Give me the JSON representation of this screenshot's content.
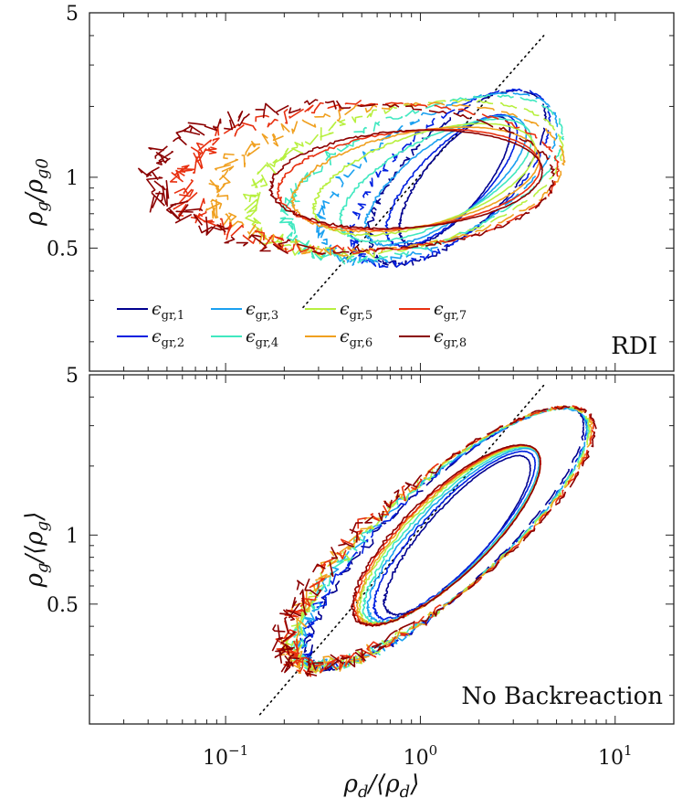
{
  "chart_data": [
    {
      "type": "line",
      "panel": "top",
      "panel_label": "RDI",
      "ylabel": "ρ_g/ρ_g0",
      "ylabel_parts": [
        "ρ",
        "g",
        "/ρ",
        "g0"
      ],
      "xscale": "log",
      "yscale": "log",
      "xlim": [
        0.02,
        20
      ],
      "ylim": [
        0.15,
        5
      ],
      "yticks": [
        {
          "value": 0.5,
          "label": "0.5"
        },
        {
          "value": 1,
          "label": "1"
        },
        {
          "value": 5,
          "label": "5"
        }
      ],
      "legend_position": "lower-left",
      "reference_line": {
        "style": "dotted",
        "color": "#000000",
        "x": [
          0.25,
          4.3
        ],
        "y": [
          0.28,
          4.0
        ]
      },
      "series": [
        {
          "name": "ε_gr,1",
          "color": "#00008f",
          "inner": {
            "cx": 1.5,
            "cy": 0.97,
            "rx": 1.1,
            "ry": 0.7,
            "tilt": 0.72
          },
          "outer": {
            "cx": 1.55,
            "cy": 1.0,
            "rx": 1.75,
            "ry": 1.05,
            "tilt": 0.55
          }
        },
        {
          "name": "ε_gr,2",
          "color": "#0020e0",
          "inner": {
            "cx": 1.45,
            "cy": 0.97,
            "rx": 1.3,
            "ry": 0.72,
            "tilt": 0.62
          },
          "outer": {
            "cx": 1.45,
            "cy": 1.0,
            "rx": 1.95,
            "ry": 1.1,
            "tilt": 0.48
          }
        },
        {
          "name": "ε_gr,3",
          "color": "#1aa0f0",
          "inner": {
            "cx": 1.35,
            "cy": 0.97,
            "rx": 1.6,
            "ry": 0.74,
            "tilt": 0.48
          },
          "outer": {
            "cx": 1.25,
            "cy": 1.0,
            "rx": 2.35,
            "ry": 1.12,
            "tilt": 0.35
          }
        },
        {
          "name": "ε_gr,4",
          "color": "#40e8c0",
          "inner": {
            "cx": 1.2,
            "cy": 0.97,
            "rx": 1.9,
            "ry": 0.76,
            "tilt": 0.35
          },
          "outer": {
            "cx": 1.05,
            "cy": 1.0,
            "rx": 2.75,
            "ry": 1.15,
            "tilt": 0.25
          }
        },
        {
          "name": "ε_gr,5",
          "color": "#b8f040",
          "inner": {
            "cx": 1.05,
            "cy": 0.98,
            "rx": 2.2,
            "ry": 0.78,
            "tilt": 0.22
          },
          "outer": {
            "cx": 0.85,
            "cy": 1.0,
            "rx": 3.1,
            "ry": 1.17,
            "tilt": 0.15
          }
        },
        {
          "name": "ε_gr,6",
          "color": "#f0a020",
          "inner": {
            "cx": 0.95,
            "cy": 0.98,
            "rx": 2.45,
            "ry": 0.79,
            "tilt": 0.14
          },
          "outer": {
            "cx": 0.7,
            "cy": 1.0,
            "rx": 3.45,
            "ry": 1.18,
            "tilt": 0.08
          }
        },
        {
          "name": "ε_gr,7",
          "color": "#e83010",
          "inner": {
            "cx": 0.88,
            "cy": 0.98,
            "rx": 2.6,
            "ry": 0.8,
            "tilt": 0.08
          },
          "outer": {
            "cx": 0.55,
            "cy": 1.0,
            "rx": 3.75,
            "ry": 1.2,
            "tilt": 0.03
          }
        },
        {
          "name": "ε_gr,8",
          "color": "#8b0000",
          "inner": {
            "cx": 0.85,
            "cy": 0.98,
            "rx": 2.7,
            "ry": 0.8,
            "tilt": 0.05
          },
          "outer": {
            "cx": 0.45,
            "cy": 1.0,
            "rx": 4.0,
            "ry": 1.2,
            "tilt": 0.0
          }
        }
      ]
    },
    {
      "type": "line",
      "panel": "bottom",
      "panel_label": "No Backreaction",
      "xlabel": "ρ_d/⟨ρ_d⟩",
      "xlabel_parts": [
        "ρ",
        "d",
        "/⟨ρ",
        "d",
        "⟩"
      ],
      "ylabel": "ρ_g/⟨ρ_g⟩",
      "ylabel_parts": [
        "ρ",
        "g",
        "/⟨ρ",
        "g",
        "⟩"
      ],
      "xscale": "log",
      "yscale": "log",
      "xlim": [
        0.02,
        20
      ],
      "ylim": [
        0.15,
        5
      ],
      "xticks": [
        {
          "value": 0.1,
          "base": "10",
          "exp": "−1"
        },
        {
          "value": 1,
          "base": "10",
          "exp": "0"
        },
        {
          "value": 10,
          "base": "10",
          "exp": "1"
        }
      ],
      "yticks": [
        {
          "value": 0.5,
          "label": "0.5"
        },
        {
          "value": 1,
          "label": "1"
        },
        {
          "value": 5,
          "label": "5"
        }
      ],
      "reference_line": {
        "style": "dotted",
        "color": "#000000",
        "x": [
          0.15,
          4.3
        ],
        "y": [
          0.165,
          4.5
        ]
      },
      "series": [
        {
          "name": "ε_gr,1",
          "color": "#00008f",
          "inner": {
            "cx": 1.55,
            "cy": 1.0,
            "rx": 1.45,
            "ry": 0.72,
            "tilt": 0.78
          },
          "outer": {
            "cx": 1.35,
            "cy": 0.98,
            "rx": 2.75,
            "ry": 1.15,
            "tilt": 0.68
          }
        },
        {
          "name": "ε_gr,2",
          "color": "#0020e0",
          "inner": {
            "cx": 1.5,
            "cy": 1.0,
            "rx": 1.6,
            "ry": 0.75,
            "tilt": 0.75
          },
          "outer": {
            "cx": 1.35,
            "cy": 0.98,
            "rx": 2.8,
            "ry": 1.17,
            "tilt": 0.66
          }
        },
        {
          "name": "ε_gr,3",
          "color": "#1aa0f0",
          "inner": {
            "cx": 1.48,
            "cy": 1.0,
            "rx": 1.7,
            "ry": 0.8,
            "tilt": 0.72
          },
          "outer": {
            "cx": 1.32,
            "cy": 0.98,
            "rx": 2.85,
            "ry": 1.18,
            "tilt": 0.64
          }
        },
        {
          "name": "ε_gr,4",
          "color": "#40e8c0",
          "inner": {
            "cx": 1.45,
            "cy": 1.0,
            "rx": 1.75,
            "ry": 0.84,
            "tilt": 0.7
          },
          "outer": {
            "cx": 1.3,
            "cy": 0.98,
            "rx": 2.9,
            "ry": 1.19,
            "tilt": 0.63
          }
        },
        {
          "name": "ε_gr,5",
          "color": "#b8f040",
          "inner": {
            "cx": 1.42,
            "cy": 1.0,
            "rx": 1.8,
            "ry": 0.87,
            "tilt": 0.68
          },
          "outer": {
            "cx": 1.28,
            "cy": 0.98,
            "rx": 2.95,
            "ry": 1.2,
            "tilt": 0.62
          }
        },
        {
          "name": "ε_gr,6",
          "color": "#f0a020",
          "inner": {
            "cx": 1.4,
            "cy": 1.0,
            "rx": 1.82,
            "ry": 0.89,
            "tilt": 0.67
          },
          "outer": {
            "cx": 1.27,
            "cy": 0.98,
            "rx": 3.0,
            "ry": 1.21,
            "tilt": 0.61
          }
        },
        {
          "name": "ε_gr,7",
          "color": "#e83010",
          "inner": {
            "cx": 1.38,
            "cy": 1.0,
            "rx": 1.85,
            "ry": 0.9,
            "tilt": 0.66
          },
          "outer": {
            "cx": 1.26,
            "cy": 0.98,
            "rx": 3.05,
            "ry": 1.22,
            "tilt": 0.6
          }
        },
        {
          "name": "ε_gr,8",
          "color": "#8b0000",
          "inner": {
            "cx": 1.36,
            "cy": 1.0,
            "rx": 1.87,
            "ry": 0.92,
            "tilt": 0.65
          },
          "outer": {
            "cx": 1.25,
            "cy": 0.98,
            "rx": 3.1,
            "ry": 1.23,
            "tilt": 0.59
          }
        }
      ]
    }
  ],
  "legend": [
    {
      "symbol": "ϵ",
      "sub": "gr,1",
      "color": "#00008f"
    },
    {
      "symbol": "ϵ",
      "sub": "gr,2",
      "color": "#0020e0"
    },
    {
      "symbol": "ϵ",
      "sub": "gr,3",
      "color": "#1aa0f0"
    },
    {
      "symbol": "ϵ",
      "sub": "gr,4",
      "color": "#40e8c0"
    },
    {
      "symbol": "ϵ",
      "sub": "gr,5",
      "color": "#b8f040"
    },
    {
      "symbol": "ϵ",
      "sub": "gr,6",
      "color": "#f0a020"
    },
    {
      "symbol": "ϵ",
      "sub": "gr,7",
      "color": "#e83010"
    },
    {
      "symbol": "ϵ",
      "sub": "gr,8",
      "color": "#8b0000"
    }
  ]
}
